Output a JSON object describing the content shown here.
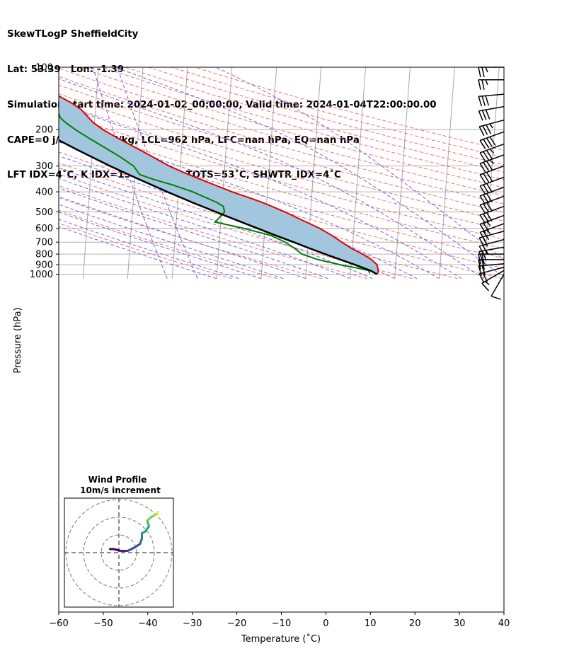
{
  "header": {
    "line1": "SkewTLogP SheffieldCity",
    "line2": "Lat: 53.39   Lon: -1.39",
    "line3": "Simulation start time: 2024-01-02_00:00:00, Valid time: 2024-01-04T22:00:00.00",
    "line4": "CAPE=0 j/kg, CIN=0 j/kg, LCL=962 hPa, LFC=nan hPa, EQ=nan hPa",
    "line5": "LFT IDX=4˚C, K IDX=15˚C, TOTAL TOTS=53˚C, SHWTR_IDX=4˚C"
  },
  "chart_data": {
    "type": "skewt-logp",
    "xlabel": "Temperature (˚C)",
    "ylabel": "Pressure (hPa)",
    "xlim": [
      -60,
      40
    ],
    "ylim": [
      1050,
      100
    ],
    "x_ticks": [
      -60,
      -50,
      -40,
      -30,
      -20,
      -10,
      0,
      10,
      20,
      30,
      40
    ],
    "x_tick_labels": [
      "−60",
      "−50",
      "−40",
      "−30",
      "−20",
      "−10",
      "0",
      "10",
      "20",
      "30",
      "40"
    ],
    "y_ticks": [
      1000,
      900,
      800,
      700,
      600,
      500,
      400,
      300,
      200,
      100
    ],
    "y_tick_labels": [
      "1000",
      "900",
      "800",
      "700",
      "600",
      "500",
      "400",
      "300",
      "200",
      "100"
    ],
    "grid": true,
    "colors": {
      "temperature": "#e00000",
      "dewpoint": "#008000",
      "parcel": "#000000",
      "cape_fill": "#a3c6df",
      "dry_adiabat": "#ff6b6b",
      "moist_adiabat": "#6a6af5",
      "mixing_ratio": "#9a52c9",
      "isotherm": "#a8a8a8"
    },
    "temperature_profile": [
      {
        "p": 1000,
        "t": 6.0
      },
      {
        "p": 970,
        "t": 6.2
      },
      {
        "p": 930,
        "t": 6.0
      },
      {
        "p": 900,
        "t": 5.8
      },
      {
        "p": 850,
        "t": 4.5
      },
      {
        "p": 800,
        "t": 2.4
      },
      {
        "p": 750,
        "t": -0.2
      },
      {
        "p": 700,
        "t": -2.5
      },
      {
        "p": 650,
        "t": -4.8
      },
      {
        "p": 600,
        "t": -7.7
      },
      {
        "p": 550,
        "t": -11.6
      },
      {
        "p": 500,
        "t": -15.8
      },
      {
        "p": 470,
        "t": -18.8
      },
      {
        "p": 450,
        "t": -21.0
      },
      {
        "p": 430,
        "t": -23.6
      },
      {
        "p": 400,
        "t": -28.0
      },
      {
        "p": 350,
        "t": -35.0
      },
      {
        "p": 320,
        "t": -39.5
      },
      {
        "p": 300,
        "t": -42.5
      },
      {
        "p": 270,
        "t": -46.5
      },
      {
        "p": 250,
        "t": -49.5
      },
      {
        "p": 220,
        "t": -54.5
      },
      {
        "p": 200,
        "t": -58.0
      },
      {
        "p": 185,
        "t": -60.3
      },
      {
        "p": 170,
        "t": -62.0
      },
      {
        "p": 160,
        "t": -63.2
      },
      {
        "p": 150,
        "t": -65.2
      },
      {
        "p": 140,
        "t": -67.8
      },
      {
        "p": 130,
        "t": -70.6
      },
      {
        "p": 120,
        "t": -73.5
      },
      {
        "p": 110,
        "t": -75.8
      },
      {
        "p": 100,
        "t": -78.0
      }
    ],
    "dewpoint_profile": [
      {
        "p": 990,
        "t": 4.3
      },
      {
        "p": 960,
        "t": 4.0
      },
      {
        "p": 930,
        "t": 1.0
      },
      {
        "p": 900,
        "t": -2.5
      },
      {
        "p": 850,
        "t": -7.5
      },
      {
        "p": 800,
        "t": -11.2
      },
      {
        "p": 750,
        "t": -13.0
      },
      {
        "p": 700,
        "t": -15.2
      },
      {
        "p": 650,
        "t": -18.5
      },
      {
        "p": 600,
        "t": -24.8
      },
      {
        "p": 560,
        "t": -31.3
      },
      {
        "p": 540,
        "t": -30.6
      },
      {
        "p": 500,
        "t": -29.3
      },
      {
        "p": 470,
        "t": -29.7
      },
      {
        "p": 450,
        "t": -31.2
      },
      {
        "p": 400,
        "t": -36.8
      },
      {
        "p": 370,
        "t": -41.5
      },
      {
        "p": 350,
        "t": -45.5
      },
      {
        "p": 330,
        "t": -49.0
      },
      {
        "p": 300,
        "t": -50.5
      },
      {
        "p": 270,
        "t": -53.8
      },
      {
        "p": 250,
        "t": -56.5
      },
      {
        "p": 220,
        "t": -61.0
      },
      {
        "p": 200,
        "t": -64.2
      },
      {
        "p": 185,
        "t": -66.5
      },
      {
        "p": 175,
        "t": -67.8
      },
      {
        "p": 160,
        "t": -68.5
      },
      {
        "p": 145,
        "t": -70.0
      },
      {
        "p": 130,
        "t": -71.8
      },
      {
        "p": 115,
        "t": -74.0
      },
      {
        "p": 100,
        "t": -77.0
      }
    ],
    "parcel_profile": [
      {
        "p": 1000,
        "t": 5.9
      },
      {
        "p": 962,
        "t": 4.5
      },
      {
        "p": 900,
        "t": 0.8
      },
      {
        "p": 850,
        "t": -2.5
      },
      {
        "p": 800,
        "t": -6.0
      },
      {
        "p": 750,
        "t": -9.6
      },
      {
        "p": 700,
        "t": -13.3
      },
      {
        "p": 650,
        "t": -17.4
      },
      {
        "p": 600,
        "t": -21.7
      },
      {
        "p": 550,
        "t": -26.3
      },
      {
        "p": 500,
        "t": -31.3
      },
      {
        "p": 450,
        "t": -36.7
      },
      {
        "p": 400,
        "t": -42.5
      },
      {
        "p": 350,
        "t": -48.8
      },
      {
        "p": 300,
        "t": -55.8
      },
      {
        "p": 250,
        "t": -63.5
      },
      {
        "p": 200,
        "t": -72.5
      },
      {
        "p": 150,
        "t": -83.5
      },
      {
        "p": 100,
        "t": -98.0
      }
    ],
    "wind_barbs": {
      "pressures": [
        1000,
        960,
        925,
        890,
        850,
        800,
        740,
        680,
        620,
        570,
        520,
        470,
        420,
        380,
        340,
        300,
        265,
        235,
        205,
        180,
        155,
        135,
        115,
        100
      ],
      "speed_kt": [
        10,
        15,
        20,
        20,
        20,
        20,
        25,
        20,
        20,
        25,
        25,
        30,
        30,
        30,
        30,
        30,
        35,
        35,
        40,
        35,
        30,
        30,
        25,
        25
      ],
      "direction_deg": [
        210,
        240,
        255,
        265,
        270,
        270,
        260,
        255,
        255,
        250,
        250,
        250,
        250,
        250,
        250,
        250,
        250,
        250,
        250,
        255,
        260,
        265,
        270,
        270
      ]
    },
    "hodograph": {
      "title": "Wind Profile",
      "subtitle": "10m/s increment",
      "rings_ms": [
        10,
        20,
        30
      ],
      "points": [
        [
          -5,
          2
        ],
        [
          -3,
          2
        ],
        [
          1,
          1
        ],
        [
          5,
          1
        ],
        [
          9,
          3
        ],
        [
          12,
          5
        ],
        [
          13,
          8
        ],
        [
          13,
          11
        ],
        [
          15,
          12
        ],
        [
          17,
          15
        ],
        [
          16,
          18
        ],
        [
          18,
          20
        ],
        [
          20,
          21
        ],
        [
          22,
          22
        ],
        [
          22,
          23
        ]
      ]
    }
  }
}
